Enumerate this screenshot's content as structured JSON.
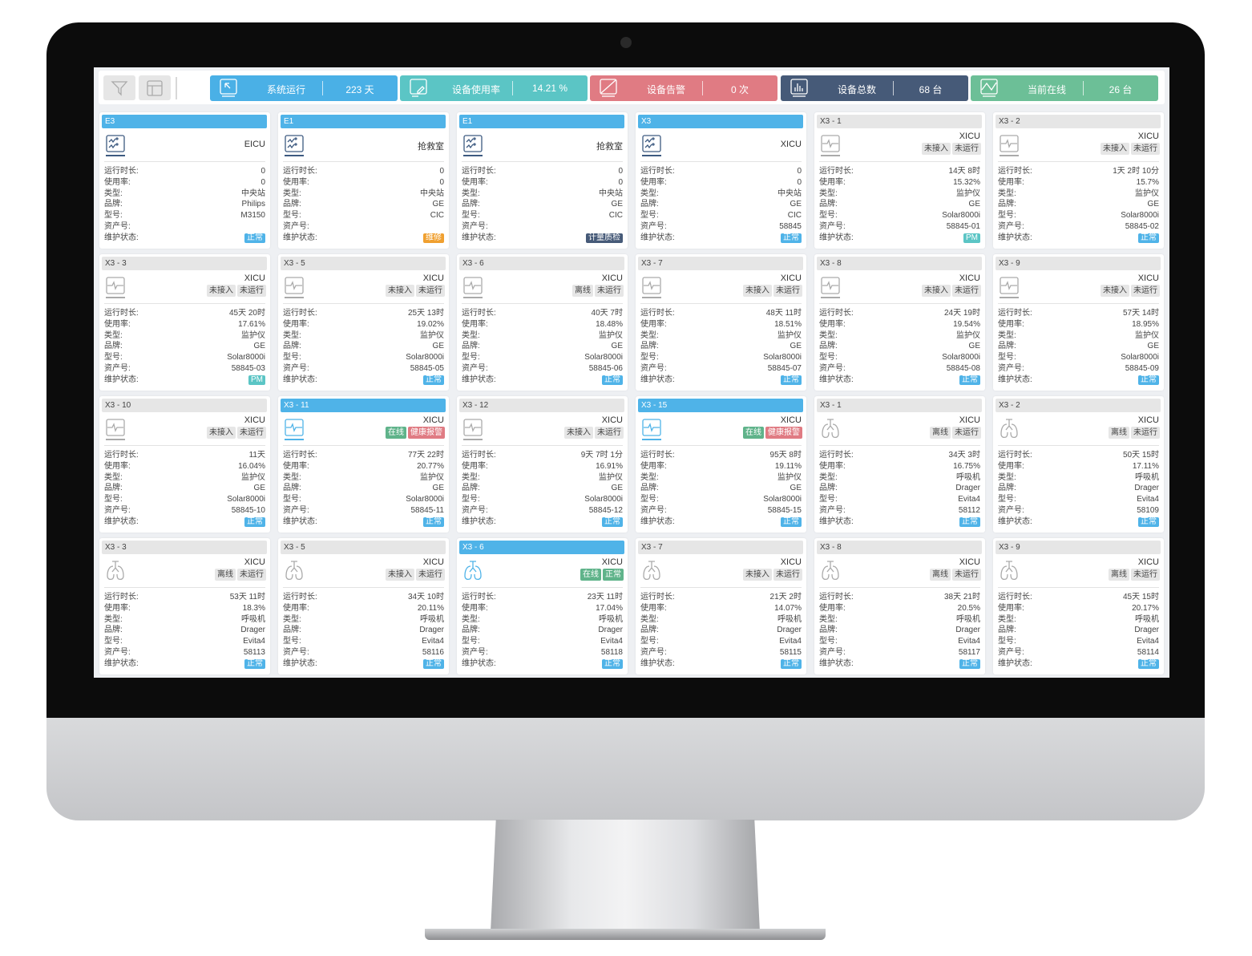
{
  "colors": {
    "blue": "#4fb3e8",
    "teal": "#5bc5c5",
    "red": "#e07b83",
    "navy": "#465a78",
    "green": "#6cbf97",
    "orange": "#f0a030",
    "grey": "#e6e6e6",
    "online": "#5fb38a"
  },
  "toolbar": {
    "tools": [
      {
        "icon": "filter-icon"
      },
      {
        "icon": "layout-icon"
      }
    ],
    "stats": [
      {
        "icon": "cursor-icon",
        "label": "系统运行",
        "value": "223 天",
        "color": "#4ab0e6"
      },
      {
        "icon": "edit-icon",
        "label": "设备使用率",
        "value": "14.21 %",
        "color": "#5bc5c5"
      },
      {
        "icon": "alarm-icon",
        "label": "设备告警",
        "value": "0 次",
        "color": "#e07b83"
      },
      {
        "icon": "bar-chart-icon",
        "label": "设备总数",
        "value": "68 台",
        "color": "#465a78"
      },
      {
        "icon": "line-chart-icon",
        "label": "当前在线",
        "value": "26 台",
        "color": "#6cbf97"
      }
    ]
  },
  "field_labels": [
    "运行时长:",
    "使用率:",
    "类型:",
    "品牌:",
    "型号:",
    "资产号:",
    "维护状态:"
  ],
  "cards": [
    {
      "title": "E3",
      "active": true,
      "icon": "central-station-icon",
      "location": "EICU",
      "tags": [],
      "values": [
        "0",
        "0",
        "中央站",
        "Philips",
        "M3150",
        ""
      ],
      "status": {
        "text": "正常",
        "color": "#4fb3e8"
      }
    },
    {
      "title": "E1",
      "active": true,
      "icon": "central-station-icon",
      "location": "抢救室",
      "tags": [],
      "values": [
        "0",
        "0",
        "中央站",
        "GE",
        "CIC",
        ""
      ],
      "status": {
        "text": "维修",
        "color": "#f0a030"
      }
    },
    {
      "title": "E1",
      "active": true,
      "icon": "central-station-icon",
      "location": "抢救室",
      "tags": [],
      "values": [
        "0",
        "0",
        "中央站",
        "GE",
        "CIC",
        ""
      ],
      "status": {
        "text": "计量质检",
        "color": "#465a78"
      }
    },
    {
      "title": "X3",
      "active": true,
      "icon": "central-station-icon",
      "location": "XICU",
      "tags": [],
      "values": [
        "0",
        "0",
        "中央站",
        "GE",
        "CIC",
        "58845"
      ],
      "status": {
        "text": "正常",
        "color": "#4fb3e8"
      }
    },
    {
      "title": "X3 - 1",
      "active": false,
      "icon": "monitor-icon",
      "location": "XICU",
      "tags": [
        {
          "text": "未接入"
        },
        {
          "text": "未运行"
        }
      ],
      "values": [
        "14天 8时",
        "15.32%",
        "监护仪",
        "GE",
        "Solar8000i",
        "58845-01"
      ],
      "status": {
        "text": "PM",
        "color": "#5bc5c5"
      }
    },
    {
      "title": "X3 - 2",
      "active": false,
      "icon": "monitor-icon",
      "location": "XICU",
      "tags": [
        {
          "text": "未接入"
        },
        {
          "text": "未运行"
        }
      ],
      "values": [
        "1天 2时 10分",
        "15.7%",
        "监护仪",
        "GE",
        "Solar8000i",
        "58845-02"
      ],
      "status": {
        "text": "正常",
        "color": "#4fb3e8"
      }
    },
    {
      "title": "X3 - 3",
      "active": false,
      "icon": "monitor-icon",
      "location": "XICU",
      "tags": [
        {
          "text": "未接入"
        },
        {
          "text": "未运行"
        }
      ],
      "values": [
        "45天 20时",
        "17.61%",
        "监护仪",
        "GE",
        "Solar8000i",
        "58845-03"
      ],
      "status": {
        "text": "PM",
        "color": "#5bc5c5"
      }
    },
    {
      "title": "X3 - 5",
      "active": false,
      "icon": "monitor-icon",
      "location": "XICU",
      "tags": [
        {
          "text": "未接入"
        },
        {
          "text": "未运行"
        }
      ],
      "values": [
        "25天 13时",
        "19.02%",
        "监护仪",
        "GE",
        "Solar8000i",
        "58845-05"
      ],
      "status": {
        "text": "正常",
        "color": "#4fb3e8"
      }
    },
    {
      "title": "X3 - 6",
      "active": false,
      "icon": "monitor-icon",
      "location": "XICU",
      "tags": [
        {
          "text": "离线"
        },
        {
          "text": "未运行"
        }
      ],
      "values": [
        "40天 7时",
        "18.48%",
        "监护仪",
        "GE",
        "Solar8000i",
        "58845-06"
      ],
      "status": {
        "text": "正常",
        "color": "#4fb3e8"
      }
    },
    {
      "title": "X3 - 7",
      "active": false,
      "icon": "monitor-icon",
      "location": "XICU",
      "tags": [
        {
          "text": "未接入"
        },
        {
          "text": "未运行"
        }
      ],
      "values": [
        "48天 11时",
        "18.51%",
        "监护仪",
        "GE",
        "Solar8000i",
        "58845-07"
      ],
      "status": {
        "text": "正常",
        "color": "#4fb3e8"
      }
    },
    {
      "title": "X3 - 8",
      "active": false,
      "icon": "monitor-icon",
      "location": "XICU",
      "tags": [
        {
          "text": "未接入"
        },
        {
          "text": "未运行"
        }
      ],
      "values": [
        "24天 19时",
        "19.54%",
        "监护仪",
        "GE",
        "Solar8000i",
        "58845-08"
      ],
      "status": {
        "text": "正常",
        "color": "#4fb3e8"
      }
    },
    {
      "title": "X3 - 9",
      "active": false,
      "icon": "monitor-icon",
      "location": "XICU",
      "tags": [
        {
          "text": "未接入"
        },
        {
          "text": "未运行"
        }
      ],
      "values": [
        "57天 14时",
        "18.95%",
        "监护仪",
        "GE",
        "Solar8000i",
        "58845-09"
      ],
      "status": {
        "text": "正常",
        "color": "#4fb3e8"
      }
    },
    {
      "title": "X3 - 10",
      "active": false,
      "icon": "monitor-icon",
      "location": "XICU",
      "tags": [
        {
          "text": "未接入"
        },
        {
          "text": "未运行"
        }
      ],
      "values": [
        "11天",
        "16.04%",
        "监护仪",
        "GE",
        "Solar8000i",
        "58845-10"
      ],
      "status": {
        "text": "正常",
        "color": "#4fb3e8"
      }
    },
    {
      "title": "X3 - 11",
      "active": true,
      "icon": "monitor-icon",
      "location": "XICU",
      "tags": [
        {
          "text": "在线",
          "color": "#5fb38a"
        },
        {
          "text": "健康报警",
          "color": "#e07b83"
        }
      ],
      "values": [
        "77天 22时",
        "20.77%",
        "监护仪",
        "GE",
        "Solar8000i",
        "58845-11"
      ],
      "status": {
        "text": "正常",
        "color": "#4fb3e8"
      }
    },
    {
      "title": "X3 - 12",
      "active": false,
      "icon": "monitor-icon",
      "location": "XICU",
      "tags": [
        {
          "text": "未接入"
        },
        {
          "text": "未运行"
        }
      ],
      "values": [
        "9天 7时 1分",
        "16.91%",
        "监护仪",
        "GE",
        "Solar8000i",
        "58845-12"
      ],
      "status": {
        "text": "正常",
        "color": "#4fb3e8"
      }
    },
    {
      "title": "X3 - 15",
      "active": true,
      "icon": "monitor-icon",
      "location": "XICU",
      "tags": [
        {
          "text": "在线",
          "color": "#5fb38a"
        },
        {
          "text": "健康报警",
          "color": "#e07b83"
        }
      ],
      "values": [
        "95天 8时",
        "19.11%",
        "监护仪",
        "GE",
        "Solar8000i",
        "58845-15"
      ],
      "status": {
        "text": "正常",
        "color": "#4fb3e8"
      }
    },
    {
      "title": "X3 - 1",
      "active": false,
      "icon": "ventilator-icon",
      "location": "XICU",
      "tags": [
        {
          "text": "离线"
        },
        {
          "text": "未运行"
        }
      ],
      "values": [
        "34天 3时",
        "16.75%",
        "呼吸机",
        "Drager",
        "Evita4",
        "58112"
      ],
      "status": {
        "text": "正常",
        "color": "#4fb3e8"
      }
    },
    {
      "title": "X3 - 2",
      "active": false,
      "icon": "ventilator-icon",
      "location": "XICU",
      "tags": [
        {
          "text": "离线"
        },
        {
          "text": "未运行"
        }
      ],
      "values": [
        "50天 15时",
        "17.11%",
        "呼吸机",
        "Drager",
        "Evita4",
        "58109"
      ],
      "status": {
        "text": "正常",
        "color": "#4fb3e8"
      }
    },
    {
      "title": "X3 - 3",
      "active": false,
      "icon": "ventilator-icon",
      "location": "XICU",
      "tags": [
        {
          "text": "离线"
        },
        {
          "text": "未运行"
        }
      ],
      "values": [
        "53天 11时",
        "18.3%",
        "呼吸机",
        "Drager",
        "Evita4",
        "58113"
      ],
      "status": {
        "text": "正常",
        "color": "#4fb3e8"
      }
    },
    {
      "title": "X3 - 5",
      "active": false,
      "icon": "ventilator-icon",
      "location": "XICU",
      "tags": [
        {
          "text": "未接入"
        },
        {
          "text": "未运行"
        }
      ],
      "values": [
        "34天 10时",
        "20.11%",
        "呼吸机",
        "Drager",
        "Evita4",
        "58116"
      ],
      "status": {
        "text": "正常",
        "color": "#4fb3e8"
      }
    },
    {
      "title": "X3 - 6",
      "active": true,
      "icon": "ventilator-icon",
      "location": "XICU",
      "tags": [
        {
          "text": "在线",
          "color": "#5fb38a"
        },
        {
          "text": "正常",
          "color": "#5fb38a"
        }
      ],
      "values": [
        "23天 11时",
        "17.04%",
        "呼吸机",
        "Drager",
        "Evita4",
        "58118"
      ],
      "status": {
        "text": "正常",
        "color": "#4fb3e8"
      }
    },
    {
      "title": "X3 - 7",
      "active": false,
      "icon": "ventilator-icon",
      "location": "XICU",
      "tags": [
        {
          "text": "未接入"
        },
        {
          "text": "未运行"
        }
      ],
      "values": [
        "21天 2时",
        "14.07%",
        "呼吸机",
        "Drager",
        "Evita4",
        "58115"
      ],
      "status": {
        "text": "正常",
        "color": "#4fb3e8"
      }
    },
    {
      "title": "X3 - 8",
      "active": false,
      "icon": "ventilator-icon",
      "location": "XICU",
      "tags": [
        {
          "text": "离线"
        },
        {
          "text": "未运行"
        }
      ],
      "values": [
        "38天 21时",
        "20.5%",
        "呼吸机",
        "Drager",
        "Evita4",
        "58117"
      ],
      "status": {
        "text": "正常",
        "color": "#4fb3e8"
      }
    },
    {
      "title": "X3 - 9",
      "active": false,
      "icon": "ventilator-icon",
      "location": "XICU",
      "tags": [
        {
          "text": "离线"
        },
        {
          "text": "未运行"
        }
      ],
      "values": [
        "45天 15时",
        "20.17%",
        "呼吸机",
        "Drager",
        "Evita4",
        "58114"
      ],
      "status": {
        "text": "正常",
        "color": "#4fb3e8"
      }
    }
  ]
}
